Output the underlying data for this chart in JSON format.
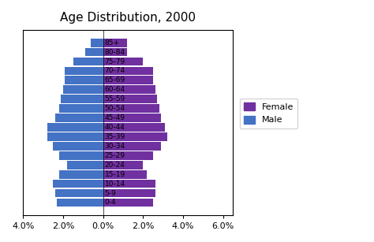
{
  "title": "Age Distribution, 2000",
  "age_groups": [
    "0-4",
    "5-9",
    "10-14",
    "15-19",
    "20-24",
    "25-29",
    "30-34",
    "35-39",
    "40-44",
    "45-49",
    "50-54",
    "55-59",
    "60-64",
    "65-69",
    "70-74",
    "75-79",
    "80-84",
    "85+"
  ],
  "male": [
    2.3,
    2.4,
    2.5,
    2.2,
    1.8,
    2.2,
    2.5,
    2.8,
    2.8,
    2.4,
    2.2,
    2.1,
    2.0,
    1.9,
    1.9,
    1.5,
    0.9,
    0.6
  ],
  "female": [
    2.5,
    2.6,
    2.6,
    2.2,
    2.0,
    2.5,
    2.9,
    3.2,
    3.1,
    2.9,
    2.8,
    2.7,
    2.6,
    2.5,
    2.5,
    2.0,
    1.2,
    1.2
  ],
  "male_color": "#4472c4",
  "female_color": "#7030a0",
  "xlim": [
    -4.0,
    6.5
  ],
  "xticks": [
    -4.0,
    -2.0,
    0.0,
    2.0,
    4.0,
    6.0
  ],
  "xticklabels": [
    "4.0%",
    "2.0%",
    "0.0%",
    "2.0%",
    "4.0%",
    "6.0%"
  ],
  "background": "#ffffff",
  "title_fontsize": 11,
  "label_fontsize": 6.5,
  "tick_fontsize": 8
}
